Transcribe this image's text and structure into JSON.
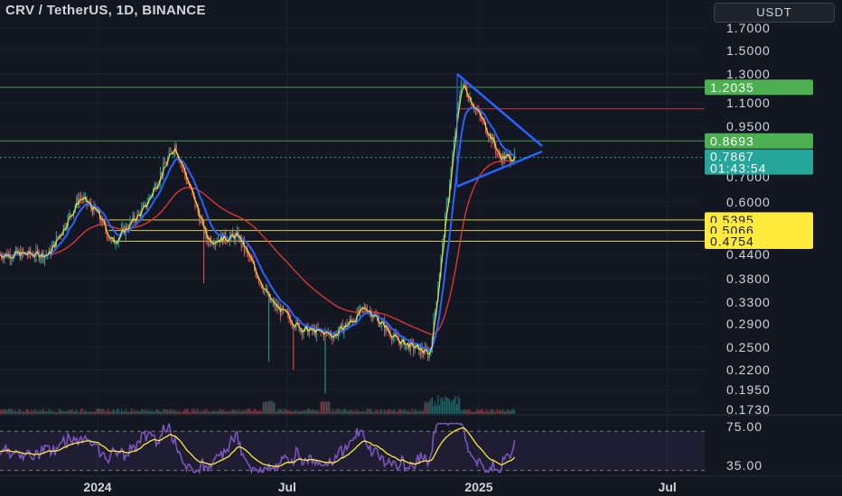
{
  "header": {
    "title": "CRV / TetherUS, 1D, BINANCE",
    "currency": "USDT"
  },
  "colors": {
    "background": "#131722",
    "up": "#26a69a",
    "down": "#ef5350",
    "ema_fast": "#2962ff",
    "ema_slow": "#e53935",
    "support": "#ffeb3b",
    "resistance_green": "#4caf50",
    "resistance_red": "#e53935",
    "rsi_line": "#7e57c2",
    "rsi_ma": "#ffeb3b"
  },
  "chart_data": {
    "type": "candlestick",
    "symbol": "CRV / TetherUS",
    "interval": "1D",
    "exchange": "BINANCE",
    "y_scale": "log",
    "y_ticks": [
      "1.7000",
      "1.5000",
      "1.3000",
      "1.1000",
      "0.9500",
      "0.7000",
      "0.6000",
      "0.4400",
      "0.3800",
      "0.3300",
      "0.2900",
      "0.2500",
      "0.2200",
      "0.1950",
      "0.1730"
    ],
    "x_ticks": [
      "2024",
      "Jul",
      "2025",
      "Jul"
    ],
    "price_labels": [
      {
        "text": "1.2035",
        "value": 1.2035,
        "style": "green"
      },
      {
        "text": "0.8693",
        "value": 0.8693,
        "style": "green"
      },
      {
        "text": "0.7867",
        "value": 0.7867,
        "style": "last"
      },
      {
        "text": "0.5395",
        "value": 0.5395,
        "style": "yellow"
      },
      {
        "text": "0.5066",
        "value": 0.5066,
        "style": "yellow"
      },
      {
        "text": "0.4754",
        "value": 0.4754,
        "style": "yellow"
      }
    ],
    "countdown": "01:43:54",
    "horizontal_lines": [
      {
        "value": 1.2035,
        "color": "green"
      },
      {
        "value": 0.8693,
        "color": "green"
      },
      {
        "value": 1.06,
        "color": "red"
      },
      {
        "value": 0.5395,
        "color": "yellow"
      },
      {
        "value": 0.5066,
        "color": "yellow"
      },
      {
        "value": 0.4754,
        "color": "yellow"
      }
    ],
    "triangle": {
      "top": 1.3,
      "apex": 0.8,
      "bottom": 0.66
    },
    "close_path_key": [
      {
        "date": "2023-11",
        "close": 0.44
      },
      {
        "date": "2023-12",
        "close": 0.62
      },
      {
        "date": "2024-01-01",
        "close": 0.56
      },
      {
        "date": "2024-01",
        "close": 0.47
      },
      {
        "date": "2024-02",
        "close": 0.58
      },
      {
        "date": "2024-03",
        "close": 0.85
      },
      {
        "date": "2024-04",
        "close": 0.48
      },
      {
        "date": "2024-05",
        "close": 0.49
      },
      {
        "date": "2024-06",
        "close": 0.33
      },
      {
        "date": "2024-07",
        "close": 0.28
      },
      {
        "date": "2024-08",
        "close": 0.27
      },
      {
        "date": "2024-09",
        "close": 0.32
      },
      {
        "date": "2024-10",
        "close": 0.26
      },
      {
        "date": "2024-11",
        "close": 0.24
      },
      {
        "date": "2024-12",
        "close": 1.25
      },
      {
        "date": "2025-01",
        "close": 0.86
      },
      {
        "date": "2025-01-20",
        "close": 0.7867
      }
    ],
    "rsi": {
      "ticks": [
        "75.00",
        "35.00"
      ],
      "range": [
        25,
        85
      ]
    }
  }
}
